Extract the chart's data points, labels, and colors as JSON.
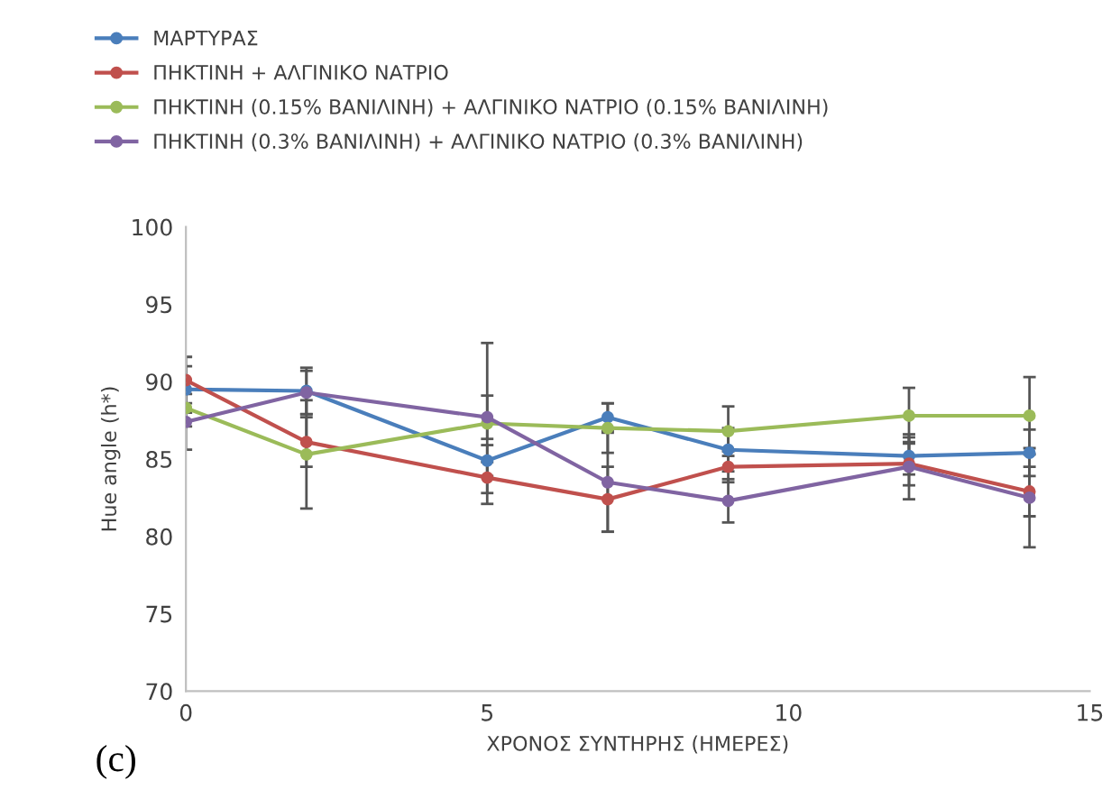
{
  "chart_data": {
    "type": "line",
    "xlabel": "ΧΡΟΝΟΣ ΣΥΝΤΗΡΗΣ (ΗΜΕΡΕΣ)",
    "ylabel": "Hue angle (h*)",
    "annotations": [
      "(c)"
    ],
    "x": [
      0,
      2,
      5,
      7,
      9,
      12,
      14
    ],
    "xlim": [
      0,
      15
    ],
    "xticks": [
      0,
      5,
      10,
      15
    ],
    "ylim": [
      70,
      100
    ],
    "yticks": [
      70,
      75,
      80,
      85,
      90,
      95,
      100
    ],
    "marker": "circle",
    "line_style": "solid",
    "grid": false,
    "legend": "top left",
    "series": [
      {
        "name": "ΜΑΡΤΥΡΑΣ",
        "color": "#4a7ebb",
        "values": [
          89.5,
          89.4,
          84.9,
          87.7,
          85.6,
          85.2,
          85.4
        ],
        "errors": [
          1.5,
          1.5,
          1.0,
          0.9,
          1.4,
          1.2,
          1.5
        ]
      },
      {
        "name": "ΠΗΚΤΙΝΗ + ΑΛΓΙΝΙΚΟ ΝΑΤΡΙΟ",
        "color": "#c0504d",
        "values": [
          90.1,
          86.1,
          83.8,
          82.4,
          84.5,
          84.7,
          82.9
        ],
        "errors": [
          1.5,
          1.6,
          1.0,
          2.1,
          1.0,
          1.4,
          1.6
        ]
      },
      {
        "name": "ΠΗΚΤΙΝΗ (0.15% ΒΑΝΙΛΙΝΗ) + ΑΛΓΙΝΙΚΟ ΝΑΤΡΙΟ (0.15% ΒΑΝΙΛΙΝΗ)",
        "color": "#9bbb59",
        "values": [
          88.3,
          85.3,
          87.3,
          87.0,
          86.8,
          87.8,
          87.8
        ],
        "errors": [
          1.2,
          3.5,
          5.2,
          1.6,
          1.6,
          1.8,
          2.5
        ]
      },
      {
        "name": "ΠΗΚΤΙΝΗ (0.3% ΒΑΝΙΛΙΝΗ) + ΑΛΓΙΝΙΚΟ ΝΑΤΡΙΟ (0.3% ΒΑΝΙΛΙΝΗ)",
        "color": "#8064a2",
        "values": [
          87.4,
          89.3,
          87.7,
          83.5,
          82.3,
          84.5,
          82.5
        ],
        "errors": [
          1.8,
          1.4,
          1.4,
          3.2,
          1.4,
          2.1,
          3.2
        ]
      }
    ]
  }
}
